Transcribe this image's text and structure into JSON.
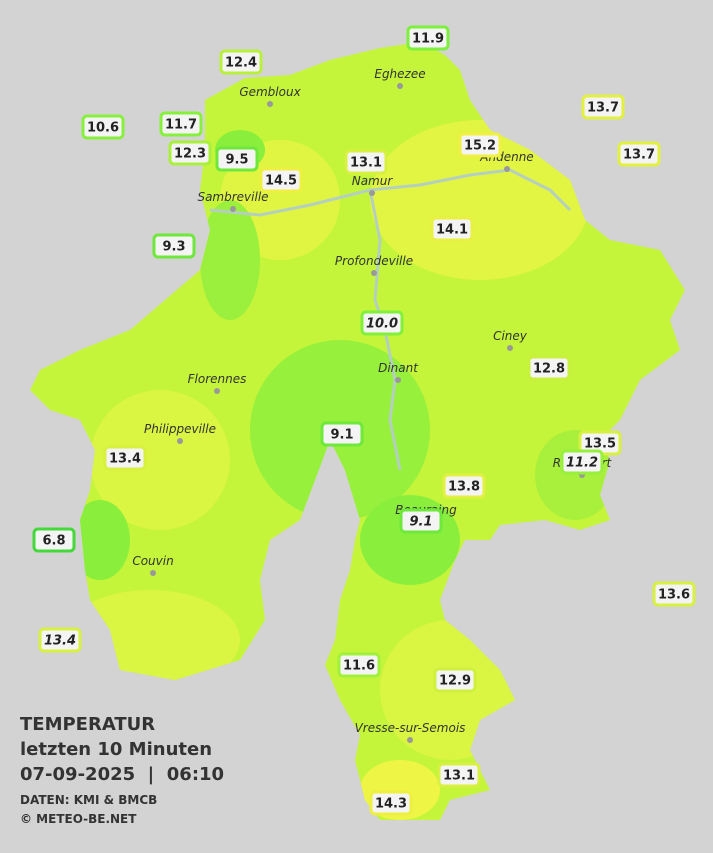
{
  "title": {
    "line1": "TEMPERATUR",
    "line2": "letzten 10 Minuten",
    "datetime": "07-09-2025  |  06:10",
    "source": "DATEN: KMI & BMCB",
    "copyright": "© METEO-BE.NET"
  },
  "cities": [
    {
      "name": "Eghezee"
    },
    {
      "name": "Gembloux"
    },
    {
      "name": "Andenne"
    },
    {
      "name": "Namur"
    },
    {
      "name": "Sambreville"
    },
    {
      "name": "Profondeville"
    },
    {
      "name": "Ciney"
    },
    {
      "name": "Dinant"
    },
    {
      "name": "Florennes"
    },
    {
      "name": "Philippeville"
    },
    {
      "name": "Rochefort"
    },
    {
      "name": "Beauraing"
    },
    {
      "name": "Couvin"
    },
    {
      "name": "Vresse-sur-Semois"
    }
  ],
  "stations": [
    {
      "label": "11.9",
      "color": "#7cf03c"
    },
    {
      "label": "12.4",
      "color": "#b8f03c"
    },
    {
      "label": "10.6",
      "color": "#86f03c"
    },
    {
      "label": "11.7",
      "color": "#86f03c"
    },
    {
      "label": "13.7",
      "color": "#e2f040"
    },
    {
      "label": "13.7",
      "color": "#e2f040"
    },
    {
      "label": "12.3",
      "color": "#a8f03c"
    },
    {
      "label": "9.5",
      "color": "#6ee83a"
    },
    {
      "label": "13.1",
      "color": "#d8f040"
    },
    {
      "label": "15.2",
      "color": "#f0f040"
    },
    {
      "label": "14.5",
      "color": "#eef040"
    },
    {
      "label": "14.1",
      "color": "#e8f040"
    },
    {
      "label": "9.3",
      "color": "#6ee83a"
    },
    {
      "label": "10.0",
      "color": "#80f03c",
      "style": "italic"
    },
    {
      "label": "12.8",
      "color": "#c8f03c"
    },
    {
      "label": "9.1",
      "color": "#6ee83a"
    },
    {
      "label": "13.5",
      "color": "#d8f040"
    },
    {
      "label": "11.2",
      "color": "#96f03c",
      "style": "italic"
    },
    {
      "label": "13.4",
      "color": "#d8f040"
    },
    {
      "label": "13.8",
      "color": "#e2f040"
    },
    {
      "label": "9.1",
      "color": "#6ee83a",
      "style": "italic"
    },
    {
      "label": "6.8",
      "color": "#44d83a"
    },
    {
      "label": "13.6",
      "color": "#d8f040"
    },
    {
      "label": "13.4",
      "color": "#d8f040",
      "style": "italic"
    },
    {
      "label": "11.6",
      "color": "#a0f03c"
    },
    {
      "label": "12.9",
      "color": "#d0f040"
    },
    {
      "label": "13.1",
      "color": "#d8f040"
    },
    {
      "label": "14.3",
      "color": "#eef040"
    }
  ]
}
